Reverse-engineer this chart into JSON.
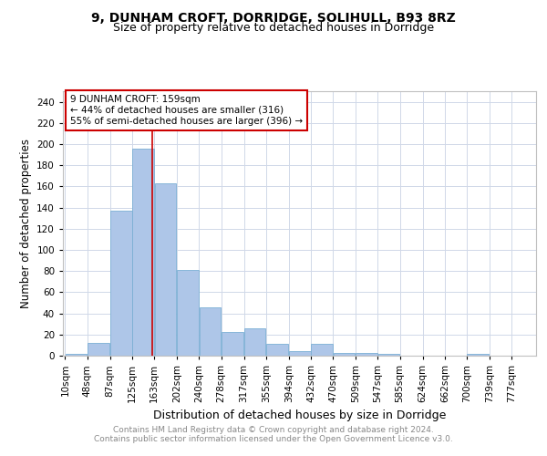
{
  "title": "9, DUNHAM CROFT, DORRIDGE, SOLIHULL, B93 8RZ",
  "subtitle": "Size of property relative to detached houses in Dorridge",
  "xlabel": "Distribution of detached houses by size in Dorridge",
  "ylabel": "Number of detached properties",
  "bar_color": "#aec6e8",
  "bar_edge_color": "#7bafd4",
  "background_color": "#ffffff",
  "grid_color": "#d0d8e8",
  "bins": [
    10,
    48,
    87,
    125,
    163,
    202,
    240,
    278,
    317,
    355,
    394,
    432,
    470,
    509,
    547,
    585,
    624,
    662,
    700,
    739,
    777
  ],
  "bin_labels": [
    "10sqm",
    "48sqm",
    "87sqm",
    "125sqm",
    "163sqm",
    "202sqm",
    "240sqm",
    "278sqm",
    "317sqm",
    "355sqm",
    "394sqm",
    "432sqm",
    "470sqm",
    "509sqm",
    "547sqm",
    "585sqm",
    "624sqm",
    "662sqm",
    "700sqm",
    "739sqm",
    "777sqm"
  ],
  "values": [
    2,
    12,
    137,
    196,
    163,
    81,
    46,
    22,
    26,
    11,
    4,
    11,
    3,
    3,
    2,
    0,
    0,
    0,
    2,
    0
  ],
  "property_size": 159,
  "property_label": "9 DUNHAM CROFT: 159sqm",
  "annotation_line1": "← 44% of detached houses are smaller (316)",
  "annotation_line2": "55% of semi-detached houses are larger (396) →",
  "vline_color": "#cc0000",
  "annotation_box_edge": "#cc0000",
  "footer_line1": "Contains HM Land Registry data © Crown copyright and database right 2024.",
  "footer_line2": "Contains public sector information licensed under the Open Government Licence v3.0.",
  "title_fontsize": 10,
  "subtitle_fontsize": 9,
  "ylabel_fontsize": 8.5,
  "xlabel_fontsize": 9,
  "tick_fontsize": 7.5,
  "annotation_fontsize": 7.5,
  "footer_fontsize": 6.5,
  "ylim": [
    0,
    250
  ]
}
